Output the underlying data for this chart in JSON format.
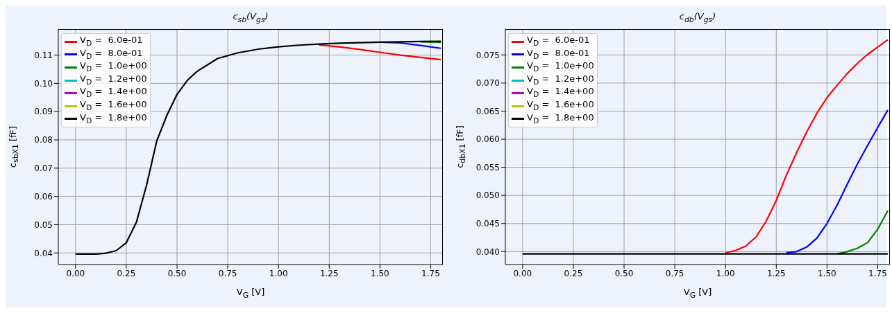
{
  "chart_data": [
    {
      "type": "line",
      "title": "c$_{sb}$(V$_{gs}$)",
      "xlabel": "V$_{G}$ [V]",
      "ylabel": "c$_{sbX1}$ [fF]",
      "x": [
        0,
        0.1,
        0.15,
        0.2,
        0.25,
        0.3,
        0.35,
        0.4,
        0.45,
        0.5,
        0.55,
        0.6,
        0.7,
        0.8,
        0.9,
        1.0,
        1.1,
        1.2,
        1.3,
        1.4,
        1.5,
        1.6,
        1.7,
        1.8
      ],
      "series": [
        {
          "name": "V$_{D}$ =  6.0e-01",
          "color": "#ff0000",
          "values": [
            null,
            null,
            null,
            null,
            null,
            null,
            null,
            null,
            null,
            null,
            null,
            null,
            null,
            null,
            null,
            null,
            null,
            0.1136,
            0.1129,
            0.112,
            0.111,
            0.11,
            0.1092,
            0.1084
          ]
        },
        {
          "name": "V$_{D}$ =  8.0e-01",
          "color": "#0000ff",
          "values": [
            null,
            null,
            null,
            null,
            null,
            null,
            null,
            null,
            null,
            null,
            null,
            null,
            null,
            null,
            null,
            null,
            null,
            null,
            null,
            null,
            0.1146,
            0.1143,
            0.1134,
            0.1124
          ]
        },
        {
          "name": "V$_{D}$ =  1.0e+00",
          "color": "#008000",
          "values": [
            null,
            null,
            null,
            null,
            null,
            null,
            null,
            null,
            null,
            null,
            null,
            null,
            null,
            null,
            null,
            null,
            null,
            null,
            null,
            null,
            null,
            null,
            0.1147,
            0.1145
          ]
        },
        {
          "name": "V$_{D}$ =  1.2e+00",
          "color": "#00bfbf",
          "values": [
            null,
            null,
            null,
            null,
            null,
            null,
            null,
            null,
            null,
            null,
            null,
            null,
            null,
            null,
            null,
            null,
            null,
            null,
            null,
            null,
            null,
            null,
            null,
            null
          ]
        },
        {
          "name": "V$_{D}$ =  1.4e+00",
          "color": "#bf00bf",
          "values": [
            null,
            null,
            null,
            null,
            null,
            null,
            null,
            null,
            null,
            null,
            null,
            null,
            null,
            null,
            null,
            null,
            null,
            null,
            null,
            null,
            null,
            null,
            null,
            null
          ]
        },
        {
          "name": "V$_{D}$ =  1.6e+00",
          "color": "#bfbf00",
          "values": [
            null,
            null,
            null,
            null,
            null,
            null,
            null,
            null,
            null,
            null,
            null,
            null,
            null,
            null,
            null,
            null,
            null,
            null,
            null,
            null,
            null,
            null,
            null,
            null
          ]
        },
        {
          "name": "V$_{D}$ =  1.8e+00",
          "color": "#000000",
          "values": [
            0.0396,
            0.0396,
            0.0399,
            0.0408,
            0.0436,
            0.0509,
            0.064,
            0.0796,
            0.0887,
            0.0961,
            0.101,
            0.1043,
            0.1088,
            0.1108,
            0.1121,
            0.1129,
            0.1135,
            0.1139,
            0.1142,
            0.1144,
            0.1146,
            0.1147,
            0.1148,
            0.1149
          ]
        }
      ],
      "xlim": [
        -0.085,
        1.81
      ],
      "xticks": [
        {
          "value": 0,
          "label": "0.00"
        },
        {
          "value": 0.25,
          "label": "0.25"
        },
        {
          "value": 0.5,
          "label": "0.50"
        },
        {
          "value": 0.75,
          "label": "0.75"
        },
        {
          "value": 1,
          "label": "1.00"
        },
        {
          "value": 1.25,
          "label": "1.25"
        },
        {
          "value": 1.5,
          "label": "1.50"
        },
        {
          "value": 1.75,
          "label": "1.75"
        }
      ],
      "ylim": [
        0.0359,
        0.1192
      ],
      "yticks": [
        {
          "value": 0.04,
          "label": "0.04"
        },
        {
          "value": 0.05,
          "label": "0.05"
        },
        {
          "value": 0.06,
          "label": "0.06"
        },
        {
          "value": 0.07,
          "label": "0.07"
        },
        {
          "value": 0.08,
          "label": "0.08"
        },
        {
          "value": 0.09,
          "label": "0.09"
        },
        {
          "value": 0.1,
          "label": "0.10"
        },
        {
          "value": 0.11,
          "label": "0.11"
        }
      ],
      "grid": true,
      "legend": "top left"
    },
    {
      "type": "line",
      "title": "c$_{db}$(V$_{gs}$)",
      "xlabel": "V$_{G}$ [V]",
      "ylabel": "c$_{dbX1}$ [fF]",
      "x": [
        0,
        1.8
      ],
      "series": [
        {
          "name": "V$_{D}$ =  6.0e-01",
          "color": "#ff0000",
          "x": [
            1.0,
            1.05,
            1.1,
            1.15,
            1.2,
            1.25,
            1.3,
            1.35,
            1.4,
            1.45,
            1.5,
            1.55,
            1.6,
            1.65,
            1.7,
            1.75,
            1.8
          ],
          "values": [
            0.0398,
            0.0402,
            0.041,
            0.0426,
            0.0454,
            0.0491,
            0.0536,
            0.0576,
            0.0613,
            0.0646,
            0.0674,
            0.0696,
            0.0717,
            0.0735,
            0.0751,
            0.0764,
            0.0777
          ]
        },
        {
          "name": "V$_{D}$ =  8.0e-01",
          "color": "#0000ff",
          "x": [
            1.3,
            1.35,
            1.4,
            1.45,
            1.5,
            1.55,
            1.6,
            1.65,
            1.7,
            1.75,
            1.8
          ],
          "values": [
            0.0398,
            0.04,
            0.0408,
            0.0424,
            0.045,
            0.0483,
            0.052,
            0.0556,
            0.0589,
            0.0621,
            0.0652
          ]
        },
        {
          "name": "V$_{D}$ =  1.0e+00",
          "color": "#008000",
          "x": [
            1.55,
            1.6,
            1.65,
            1.7,
            1.75,
            1.8
          ],
          "values": [
            0.0396,
            0.04,
            0.0406,
            0.0416,
            0.044,
            0.0473
          ]
        },
        {
          "name": "V$_{D}$ =  1.2e+00",
          "color": "#00bfbf",
          "values": [
            null,
            null
          ]
        },
        {
          "name": "V$_{D}$ =  1.4e+00",
          "color": "#bf00bf",
          "values": [
            null,
            null
          ]
        },
        {
          "name": "V$_{D}$ =  1.6e+00",
          "color": "#bfbf00",
          "values": [
            null,
            null
          ]
        },
        {
          "name": "V$_{D}$ =  1.8e+00",
          "color": "#000000",
          "values": [
            0.0396,
            0.0396
          ]
        }
      ],
      "xlim": [
        -0.085,
        1.81
      ],
      "xticks": [
        {
          "value": 0,
          "label": "0.00"
        },
        {
          "value": 0.25,
          "label": "0.25"
        },
        {
          "value": 0.5,
          "label": "0.50"
        },
        {
          "value": 0.75,
          "label": "0.75"
        },
        {
          "value": 1,
          "label": "1.00"
        },
        {
          "value": 1.25,
          "label": "1.25"
        },
        {
          "value": 1.5,
          "label": "1.50"
        },
        {
          "value": 1.75,
          "label": "1.75"
        }
      ],
      "ylim": [
        0.0377,
        0.0796
      ],
      "yticks": [
        {
          "value": 0.04,
          "label": "0.040"
        },
        {
          "value": 0.045,
          "label": "0.045"
        },
        {
          "value": 0.05,
          "label": "0.050"
        },
        {
          "value": 0.055,
          "label": "0.055"
        },
        {
          "value": 0.06,
          "label": "0.060"
        },
        {
          "value": 0.065,
          "label": "0.065"
        },
        {
          "value": 0.07,
          "label": "0.070"
        },
        {
          "value": 0.075,
          "label": "0.075"
        }
      ],
      "grid": true,
      "legend": "top left"
    }
  ]
}
